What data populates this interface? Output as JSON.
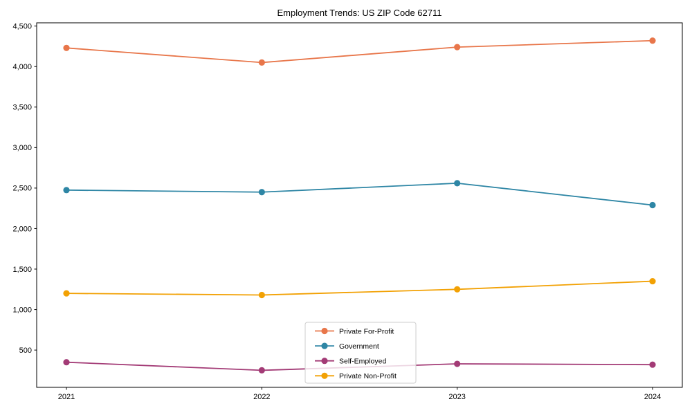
{
  "chart_data": {
    "type": "line",
    "title": "Employment Trends: US ZIP Code 62711",
    "xlabel": "",
    "ylabel": "",
    "x_labels": [
      "2021",
      "2022",
      "2023",
      "2024"
    ],
    "series": [
      {
        "name": "Private For-Profit",
        "color": "#E8764A",
        "values": [
          4230,
          4050,
          4240,
          4320
        ]
      },
      {
        "name": "Government",
        "color": "#2E86A5",
        "values": [
          2475,
          2450,
          2560,
          2290
        ]
      },
      {
        "name": "Self-Employed",
        "color": "#A33B76",
        "values": [
          350,
          250,
          330,
          320
        ]
      },
      {
        "name": "Private Non-Profit",
        "color": "#F2A104",
        "values": [
          1200,
          1180,
          1250,
          1350
        ]
      }
    ],
    "y_ticks": [
      {
        "value": 500,
        "label": "500"
      },
      {
        "value": 1000,
        "label": "1,000"
      },
      {
        "value": 1500,
        "label": "1,500"
      },
      {
        "value": 2000,
        "label": "2,000"
      },
      {
        "value": 2500,
        "label": "2,500"
      },
      {
        "value": 3000,
        "label": "3,000"
      },
      {
        "value": 3500,
        "label": "3,500"
      },
      {
        "value": 4000,
        "label": "4,000"
      },
      {
        "value": 4500,
        "label": "4,500"
      }
    ],
    "ylim": [
      40,
      4540
    ],
    "grid": false,
    "marker": "circle",
    "legend": {
      "position": "lower-center-inside",
      "entries": [
        "Private For-Profit",
        "Government",
        "Self-Employed",
        "Private Non-Profit"
      ]
    },
    "axis_color": "#000000",
    "text_color": "#000000"
  }
}
